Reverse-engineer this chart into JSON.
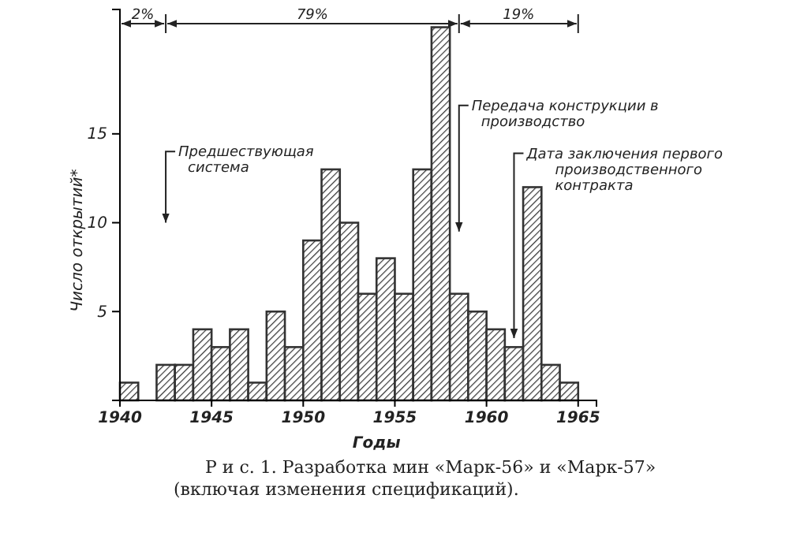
{
  "chart_data": {
    "type": "histogram",
    "title": "Р и с. 1. Разработка мин «Марк-56» и «Марк-57» (включая изменения спецификаций).",
    "xlabel": "Годы",
    "ylabel": "Число открытий*",
    "bins": [
      1940,
      1941,
      1942,
      1943,
      1944,
      1945,
      1946,
      1947,
      1948,
      1949,
      1950,
      1951,
      1952,
      1953,
      1954,
      1955,
      1956,
      1957,
      1958,
      1959,
      1960,
      1961,
      1962,
      1963,
      1964,
      1965
    ],
    "values": [
      1,
      0,
      2,
      2,
      4,
      3,
      4,
      1,
      5,
      3,
      9,
      13,
      10,
      6,
      8,
      6,
      13,
      21,
      6,
      5,
      4,
      3,
      12,
      2,
      1
    ],
    "color": "#333333",
    "xlim": [
      1940,
      1966
    ],
    "ylim": [
      0,
      22
    ],
    "xticks": [
      1940,
      1945,
      1950,
      1955,
      1960,
      1965
    ],
    "yticks": [
      5,
      10,
      15
    ],
    "grid": false,
    "annotations": [
      "2%",
      "79%",
      "19%",
      "Предшествующая система",
      "Передача конструкции в производство",
      "Дата заключения первого производственного контракта"
    ]
  }
}
